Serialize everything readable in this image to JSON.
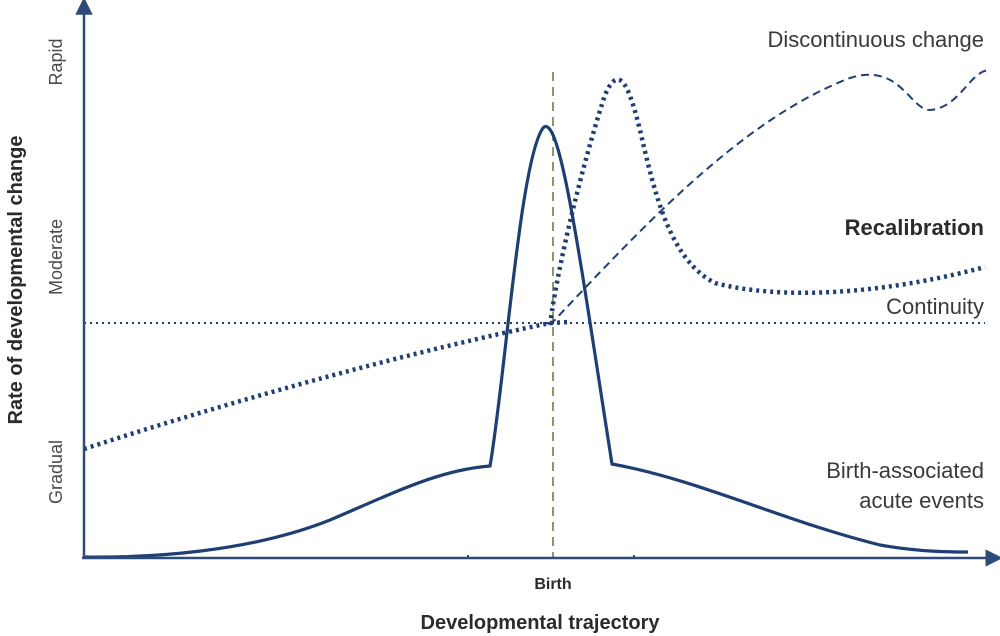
{
  "x_axis": {
    "title": "Developmental trajectory",
    "tick_label": "Birth"
  },
  "y_axis": {
    "title": "Rate of developmental change",
    "levels": [
      "Gradual",
      "Moderate",
      "Rapid"
    ]
  },
  "curves": {
    "discontinuous": "Discontinuous change",
    "recalibration": "Recalibration",
    "continuity": "Continuity",
    "birth_events_line1": "Birth-associated",
    "birth_events_line2": "acute events"
  },
  "colors": {
    "navy": "#1f3f73",
    "axis": "#2e4a78",
    "birth_marker": "#8c9a6a"
  }
}
